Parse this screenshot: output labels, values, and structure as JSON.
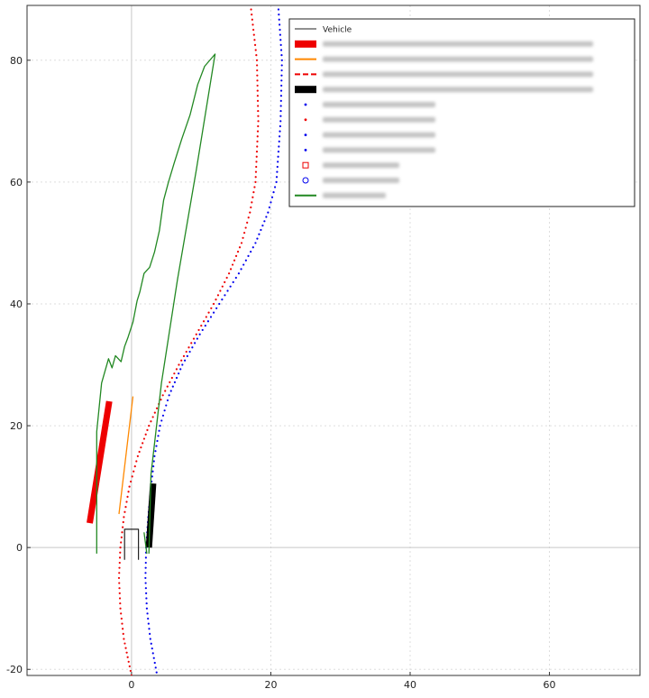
{
  "chart_data": {
    "type": "scatter",
    "title": "",
    "xlabel": "",
    "ylabel": "",
    "xlim": [
      -15,
      73
    ],
    "ylim": [
      -21,
      89
    ],
    "x_ticks": [
      0,
      20,
      40,
      60
    ],
    "y_ticks": [
      -20,
      0,
      20,
      40,
      60,
      80
    ],
    "x_tick_labels": [
      "0",
      "20",
      "40",
      "60"
    ],
    "y_tick_labels": [
      "-20",
      "0",
      "20",
      "40",
      "60",
      "80"
    ],
    "grid": true,
    "legend_position": "top-right",
    "legend": [
      {
        "label": "Vehicle",
        "color": "#222222",
        "style": "line-thin",
        "legible": true
      },
      {
        "label": "",
        "color": "#ee0000",
        "style": "thick",
        "legible": false
      },
      {
        "label": "",
        "color": "#ff8800",
        "style": "line",
        "legible": false
      },
      {
        "label": "",
        "color": "#ee0000",
        "style": "dashed",
        "legible": false
      },
      {
        "label": "",
        "color": "#000000",
        "style": "thick",
        "legible": false
      },
      {
        "label": "",
        "color": "#0000ee",
        "style": "dot",
        "legible": false
      },
      {
        "label": "",
        "color": "#ee0000",
        "style": "dot",
        "legible": false
      },
      {
        "label": "",
        "color": "#0000ee",
        "style": "dot",
        "legible": false
      },
      {
        "label": "",
        "color": "#0000ee",
        "style": "dot",
        "legible": false
      },
      {
        "label": "",
        "color": "#ee0000",
        "style": "square",
        "legible": false
      },
      {
        "label": "",
        "color": "#0000ee",
        "style": "circle",
        "legible": false
      },
      {
        "label": "",
        "color": "#228822",
        "style": "line",
        "legible": false
      }
    ],
    "series": [
      {
        "name": "Vehicle",
        "kind": "line",
        "color": "#222222",
        "x": [
          -1,
          -1,
          1,
          1
        ],
        "y": [
          -2,
          3,
          3,
          -2
        ]
      },
      {
        "kind": "thick",
        "color": "#ee0000",
        "x": [
          -6,
          -3.2
        ],
        "y": [
          4,
          24
        ]
      },
      {
        "kind": "line",
        "color": "#ff8800",
        "x": [
          -1.8,
          0.2
        ],
        "y": [
          5.5,
          24.8
        ]
      },
      {
        "kind": "dots",
        "color": "#ee0000",
        "x": [
          0,
          -1.1,
          -1.6,
          -1.8,
          -1.6,
          -1.1,
          -0.3,
          0.9,
          2.5,
          4.5,
          6.8,
          9.3,
          11.8,
          14.0,
          15.8,
          17.0,
          17.8,
          18.2,
          18.0,
          17.0
        ],
        "y": [
          -21,
          -15,
          -10,
          -5,
          0,
          5,
          10,
          15,
          20,
          25,
          30,
          35,
          40,
          45,
          50,
          55,
          60,
          70,
          80,
          90
        ]
      },
      {
        "kind": "dots",
        "color": "#0000ee",
        "x": [
          3.6,
          2.7,
          2.2,
          2.0,
          2.1,
          2.4,
          2.8,
          3.3,
          4.1,
          5.4,
          7.3,
          9.8,
          12.6,
          15.4,
          17.8,
          19.6,
          20.8,
          21.4,
          21.6,
          21.0
        ],
        "y": [
          -20.5,
          -15,
          -10,
          -5,
          0,
          5,
          10,
          15,
          20,
          25,
          30,
          35,
          40,
          45,
          50,
          55,
          60,
          70,
          80,
          90
        ]
      },
      {
        "kind": "thick",
        "color": "#000000",
        "x": [
          2.5,
          3.1
        ],
        "y": [
          0,
          10.5
        ]
      },
      {
        "kind": "line",
        "color": "#228822",
        "x": [
          -5,
          -5,
          -4.3,
          -3.3,
          -2.8,
          -2.3,
          -1.5,
          -1.0,
          -0.5,
          0.2,
          0.8,
          1.2,
          1.8,
          2.6,
          3.3,
          4.0,
          4.6,
          5.3,
          6.1,
          7.2,
          8.4,
          9.5,
          10.5,
          12.0,
          9.3,
          6.6,
          4.3,
          2.8,
          2.5
        ],
        "y": [
          -1,
          19,
          27,
          31,
          29.5,
          31.5,
          30.5,
          33,
          34.5,
          37,
          40.5,
          42,
          45,
          46,
          48.5,
          52,
          57,
          60,
          63,
          67,
          71,
          76,
          79,
          81,
          62,
          44,
          27,
          12,
          -1
        ]
      },
      {
        "kind": "line",
        "color": "#228822",
        "x": [
          1.8,
          2.2
        ],
        "y": [
          2.5,
          -1
        ]
      }
    ]
  }
}
